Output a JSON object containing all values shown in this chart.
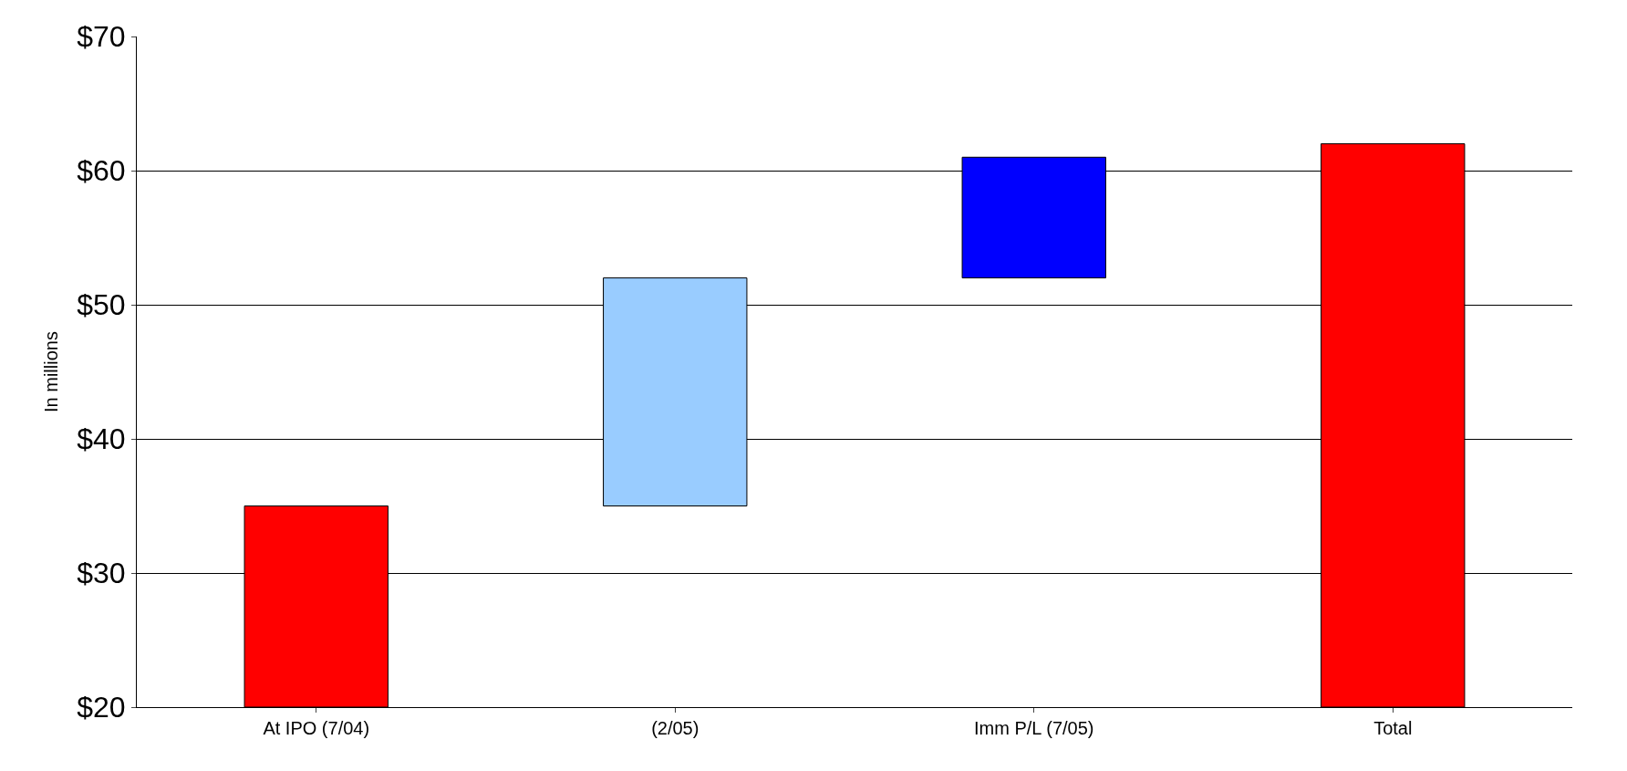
{
  "chart_data": {
    "type": "bar",
    "categories": [
      "At IPO (7/04)",
      "(2/05)",
      "Imm P/L (7/05)",
      "Total"
    ],
    "values": [
      15,
      17,
      9,
      42
    ],
    "base": [
      20,
      35,
      52,
      20
    ],
    "colors": [
      "#ff0000",
      "#99ccff",
      "#0000ff",
      "#ff0000"
    ],
    "ylabel": "In millions",
    "ylim": [
      20,
      70
    ],
    "yticks": [
      {
        "value": 20,
        "label": "$20"
      },
      {
        "value": 30,
        "label": "$30"
      },
      {
        "value": 40,
        "label": "$40"
      },
      {
        "value": 50,
        "label": "$50"
      },
      {
        "value": 60,
        "label": "$60"
      },
      {
        "value": 70,
        "label": "$70"
      }
    ],
    "grid": "y"
  }
}
